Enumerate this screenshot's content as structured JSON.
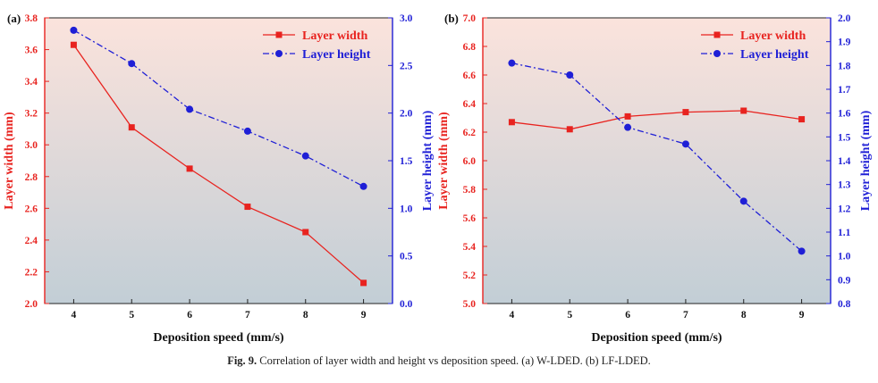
{
  "caption": {
    "label": "Fig. 9.",
    "text": "Correlation of layer width and height vs deposition speed. (a) W-LDED. (b) LF-LDED."
  },
  "colors": {
    "width": "#e8231f",
    "height": "#1f1fd6",
    "bg_top": "#fbe3dc",
    "bg_bottom": "#c2ced6"
  },
  "chart_data": [
    {
      "type": "line",
      "panel_label": "(a)",
      "xlabel": "Deposition speed (mm/s)",
      "ylabel_left": "Layer width (mm)",
      "ylabel_right": "Layer height (mm)",
      "x": [
        4,
        5,
        6,
        7,
        8,
        9
      ],
      "xlim": [
        3.5,
        9.5
      ],
      "ylim_left": [
        2.0,
        3.8
      ],
      "yticks_left": [
        "2.0",
        "2.2",
        "2.4",
        "2.6",
        "2.8",
        "3.0",
        "3.2",
        "3.4",
        "3.6",
        "3.8"
      ],
      "ylim_right": [
        0.0,
        3.0
      ],
      "yticks_right": [
        "0.0",
        "0.5",
        "1.0",
        "1.5",
        "2.0",
        "2.5",
        "3.0"
      ],
      "legend_position": "top-right",
      "series": [
        {
          "name": "Layer width",
          "axis": "left",
          "marker": "square",
          "style": "solid",
          "values": [
            3.63,
            3.11,
            2.85,
            2.61,
            2.45,
            2.13
          ]
        },
        {
          "name": "Layer height",
          "axis": "right",
          "marker": "circle",
          "style": "dashdot",
          "values": [
            2.87,
            2.52,
            2.04,
            1.81,
            1.55,
            1.23
          ]
        }
      ]
    },
    {
      "type": "line",
      "panel_label": "(b)",
      "xlabel": "Deposition speed (mm/s)",
      "ylabel_left": "Layer width (mm)",
      "ylabel_right": "Layer height (mm)",
      "x": [
        4,
        5,
        6,
        7,
        8,
        9
      ],
      "xlim": [
        3.5,
        9.5
      ],
      "ylim_left": [
        5.0,
        7.0
      ],
      "yticks_left": [
        "5.0",
        "5.2",
        "5.4",
        "5.6",
        "5.8",
        "6.0",
        "6.2",
        "6.4",
        "6.6",
        "6.8",
        "7.0"
      ],
      "ylim_right": [
        0.8,
        2.0
      ],
      "yticks_right": [
        "0.8",
        "0.9",
        "1.0",
        "1.1",
        "1.2",
        "1.3",
        "1.4",
        "1.5",
        "1.6",
        "1.7",
        "1.8",
        "1.9",
        "2.0"
      ],
      "legend_position": "top-right",
      "series": [
        {
          "name": "Layer width",
          "axis": "left",
          "marker": "square",
          "style": "solid",
          "values": [
            6.27,
            6.22,
            6.31,
            6.34,
            6.35,
            6.29
          ]
        },
        {
          "name": "Layer height",
          "axis": "right",
          "marker": "circle",
          "style": "dashdot",
          "values": [
            1.81,
            1.76,
            1.54,
            1.47,
            1.23,
            1.02
          ]
        }
      ]
    }
  ]
}
